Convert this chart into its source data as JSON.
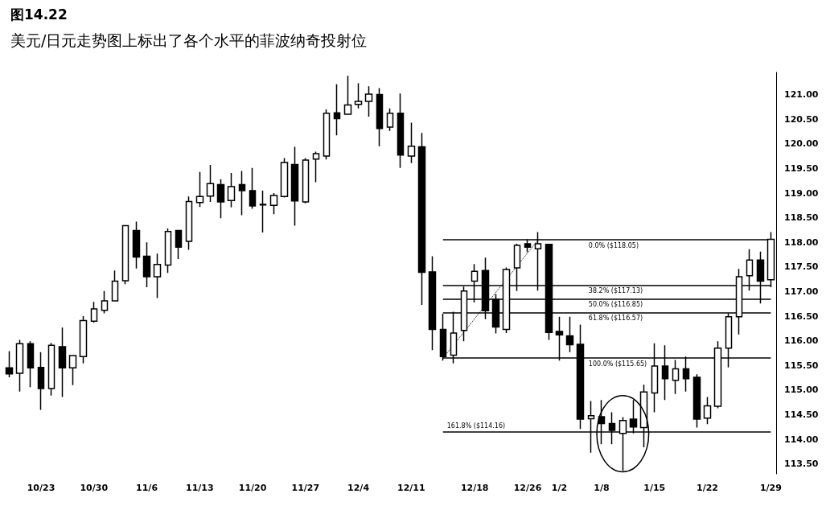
{
  "chart_data": {
    "type": "candlestick",
    "title": "图14.22",
    "subtitle": "美元/日元走势图上标出了各个水平的菲波纳奇投射位",
    "categories": [
      null,
      null,
      null,
      "10/23",
      null,
      null,
      null,
      null,
      "10/30",
      null,
      null,
      null,
      null,
      "11/6",
      null,
      null,
      null,
      null,
      "11/13",
      null,
      null,
      null,
      null,
      "11/20",
      null,
      null,
      null,
      null,
      "11/27",
      null,
      null,
      null,
      null,
      "12/4",
      null,
      null,
      null,
      null,
      "12/11",
      null,
      null,
      null,
      null,
      null,
      "12/18",
      null,
      null,
      null,
      null,
      "12/26",
      null,
      null,
      "1/2",
      null,
      null,
      null,
      "1/8",
      null,
      null,
      null,
      null,
      "1/15",
      null,
      null,
      null,
      null,
      "1/22",
      null,
      null,
      null,
      null,
      null,
      "1/29"
    ],
    "ohlc": [
      [
        115.45,
        115.79,
        115.26,
        115.33
      ],
      [
        115.34,
        116.02,
        114.97,
        115.94
      ],
      [
        115.94,
        115.99,
        115.06,
        115.45
      ],
      [
        115.46,
        115.77,
        114.6,
        115.03
      ],
      [
        115.03,
        115.96,
        114.89,
        115.91
      ],
      [
        115.88,
        116.27,
        114.86,
        115.45
      ],
      [
        115.45,
        115.7,
        115.1,
        115.7
      ],
      [
        115.68,
        116.5,
        115.54,
        116.41
      ],
      [
        116.4,
        116.79,
        116.37,
        116.65
      ],
      [
        116.62,
        117.01,
        116.56,
        116.81
      ],
      [
        116.81,
        117.43,
        116.81,
        117.21
      ],
      [
        117.22,
        118.34,
        117.15,
        118.34
      ],
      [
        118.24,
        118.42,
        117.47,
        117.7
      ],
      [
        117.72,
        118.0,
        117.09,
        117.3
      ],
      [
        117.3,
        117.77,
        116.87,
        117.55
      ],
      [
        117.54,
        118.28,
        117.38,
        118.22
      ],
      [
        118.24,
        118.24,
        117.66,
        117.9
      ],
      [
        118.02,
        118.93,
        117.85,
        118.83
      ],
      [
        118.81,
        119.43,
        118.72,
        118.93
      ],
      [
        118.94,
        119.57,
        118.82,
        119.19
      ],
      [
        119.17,
        119.28,
        118.49,
        118.82
      ],
      [
        118.85,
        119.41,
        118.71,
        119.13
      ],
      [
        119.17,
        119.45,
        118.55,
        119.05
      ],
      [
        119.05,
        119.51,
        118.68,
        118.74
      ],
      [
        118.77,
        119.05,
        118.2,
        118.76
      ],
      [
        118.75,
        119.0,
        118.57,
        118.95
      ],
      [
        118.93,
        119.71,
        118.91,
        119.62
      ],
      [
        119.58,
        119.94,
        118.34,
        118.84
      ],
      [
        118.82,
        119.71,
        118.79,
        119.67
      ],
      [
        119.69,
        119.84,
        119.22,
        119.8
      ],
      [
        119.75,
        120.7,
        119.68,
        120.62
      ],
      [
        120.63,
        121.21,
        120.17,
        120.51
      ],
      [
        120.6,
        121.38,
        120.59,
        120.79
      ],
      [
        120.8,
        121.23,
        120.72,
        120.86
      ],
      [
        120.86,
        121.17,
        120.55,
        121.01
      ],
      [
        121.0,
        121.13,
        119.95,
        120.31
      ],
      [
        120.34,
        120.72,
        120.26,
        120.62
      ],
      [
        120.62,
        121.02,
        119.51,
        119.77
      ],
      [
        119.75,
        120.43,
        119.61,
        119.95
      ],
      [
        119.94,
        120.22,
        116.73,
        117.39
      ],
      [
        117.4,
        117.72,
        115.81,
        116.23
      ],
      [
        116.23,
        116.55,
        115.6,
        115.68
      ],
      [
        115.71,
        116.59,
        115.54,
        116.16
      ],
      [
        116.21,
        117.1,
        115.99,
        117.01
      ],
      [
        117.21,
        117.56,
        116.78,
        117.41
      ],
      [
        117.43,
        117.69,
        116.44,
        116.61
      ],
      [
        116.84,
        116.95,
        116.15,
        116.28
      ],
      [
        116.23,
        117.49,
        116.16,
        117.45
      ],
      [
        117.48,
        117.97,
        117.01,
        117.94
      ],
      [
        117.97,
        118.06,
        117.8,
        117.9
      ],
      [
        117.87,
        118.21,
        117.02,
        117.97
      ],
      [
        117.96,
        117.97,
        116.02,
        116.17
      ],
      [
        116.19,
        116.49,
        115.6,
        116.12
      ],
      [
        116.1,
        116.49,
        115.77,
        115.92
      ],
      [
        115.93,
        116.33,
        114.21,
        114.41
      ],
      [
        114.42,
        114.78,
        113.73,
        114.48
      ],
      [
        114.46,
        114.8,
        113.9,
        114.32
      ],
      [
        114.32,
        114.55,
        113.9,
        114.18
      ],
      [
        114.12,
        114.45,
        113.36,
        114.38
      ],
      [
        114.41,
        114.8,
        114.12,
        114.25
      ],
      [
        114.24,
        115.11,
        113.84,
        114.96
      ],
      [
        114.94,
        115.95,
        114.55,
        115.49
      ],
      [
        115.49,
        115.91,
        114.8,
        115.23
      ],
      [
        115.2,
        115.61,
        114.92,
        115.43
      ],
      [
        115.43,
        115.68,
        114.97,
        115.23
      ],
      [
        115.26,
        115.32,
        114.24,
        114.41
      ],
      [
        114.43,
        114.86,
        114.31,
        114.68
      ],
      [
        114.67,
        115.99,
        114.63,
        115.85
      ],
      [
        115.85,
        116.56,
        115.46,
        116.49
      ],
      [
        116.49,
        117.46,
        116.13,
        117.3
      ],
      [
        117.32,
        117.86,
        117.02,
        117.64
      ],
      [
        117.64,
        117.81,
        116.76,
        117.21
      ],
      [
        117.24,
        118.21,
        117.09,
        118.06
      ]
    ],
    "color": "#000000",
    "series": [
      {
        "type": "line",
        "line_style": "dotted",
        "marker": "none",
        "color": "#000000",
        "values": [
          null,
          null,
          null,
          null,
          null,
          null,
          null,
          null,
          null,
          null,
          null,
          null,
          null,
          null,
          null,
          null,
          null,
          null,
          null,
          null,
          null,
          null,
          null,
          null,
          null,
          null,
          null,
          null,
          null,
          null,
          null,
          null,
          null,
          null,
          null,
          null,
          null,
          null,
          null,
          null,
          null,
          115.65,
          null,
          null,
          null,
          null,
          null,
          null,
          null,
          null,
          118.05,
          null,
          null,
          null,
          null,
          null,
          null,
          null,
          null,
          null,
          null,
          null,
          null,
          null,
          null,
          null,
          null,
          null,
          null,
          null,
          null,
          null,
          null
        ]
      }
    ],
    "ylim": [
      113.3,
      121.45
    ],
    "yticks": [
      {
        "value": 113.5,
        "label": "113.50"
      },
      {
        "value": 114,
        "label": "114.00"
      },
      {
        "value": 114.5,
        "label": "114.50"
      },
      {
        "value": 115,
        "label": "115.00"
      },
      {
        "value": 115.5,
        "label": "115.50"
      },
      {
        "value": 116,
        "label": "116.00"
      },
      {
        "value": 116.5,
        "label": "116.50"
      },
      {
        "value": 117,
        "label": "117.00"
      },
      {
        "value": 117.5,
        "label": "117.50"
      },
      {
        "value": 118,
        "label": "118.00"
      },
      {
        "value": 118.5,
        "label": "118.50"
      },
      {
        "value": 119,
        "label": "119.00"
      },
      {
        "value": 119.5,
        "label": "119.50"
      },
      {
        "value": 120,
        "label": "120.00"
      },
      {
        "value": 120.5,
        "label": "120.50"
      },
      {
        "value": 121,
        "label": "121.00"
      }
    ],
    "ref_lines": [
      {
        "axis": "y",
        "value": 118.05,
        "label": "0.0% ($118.05)",
        "color": "#000000"
      },
      {
        "axis": "y",
        "value": 117.13,
        "label": "38.2% ($117.13)",
        "color": "#000000"
      },
      {
        "axis": "y",
        "value": 116.85,
        "label": "50.0% ($116.85)",
        "color": "#000000"
      },
      {
        "axis": "y",
        "value": 116.57,
        "label": "61.8% ($116.57)",
        "color": "#000000"
      },
      {
        "axis": "y",
        "value": 115.65,
        "label": "100.0% ($115.65)",
        "color": "#000000"
      },
      {
        "axis": "y",
        "value": 114.16,
        "label": "161.8% ($114.16)",
        "color": "#000000"
      }
    ],
    "grid": false
  }
}
